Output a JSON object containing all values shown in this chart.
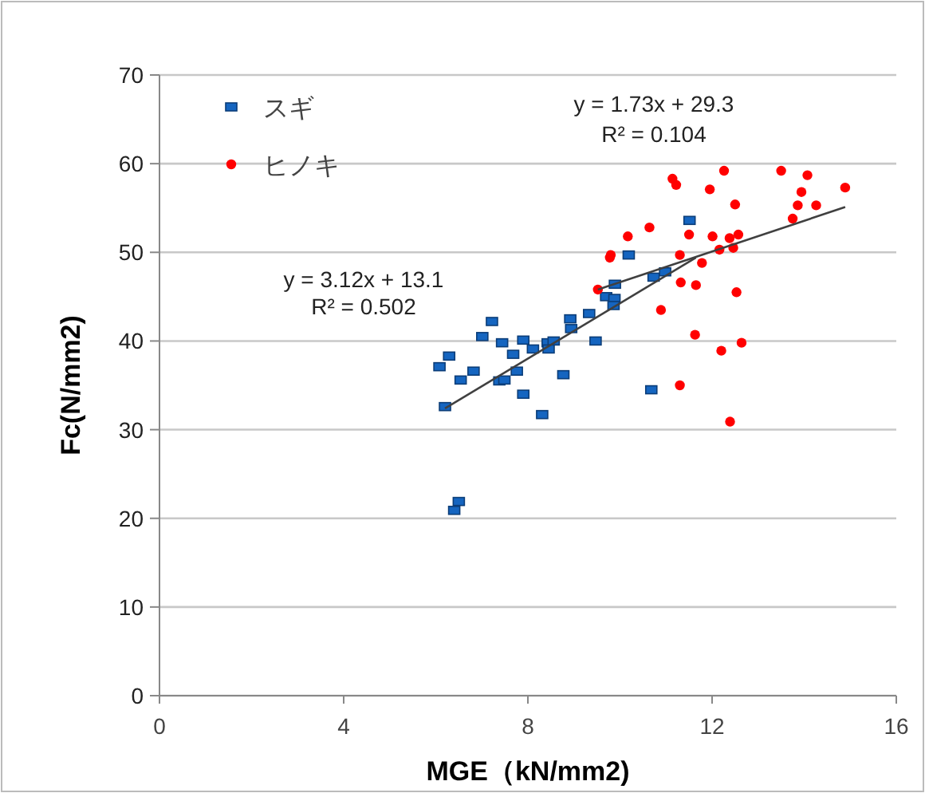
{
  "chart_data": {
    "type": "scatter",
    "xlabel": "MGE（kN/mm2)",
    "ylabel": "Fc(N/mm2)",
    "xlim": [
      0,
      16
    ],
    "xticks": [
      0,
      4,
      8,
      12,
      16
    ],
    "ylim": [
      0,
      70
    ],
    "yticks": [
      0,
      10,
      20,
      30,
      40,
      50,
      60,
      70
    ],
    "grid": "y",
    "legend": "top left",
    "series": [
      {
        "name": "スギ",
        "color": "#1565c0",
        "marker": "square",
        "x": [
          7.22,
          7.01,
          7.44,
          7.9,
          6.29,
          6.08,
          7.68,
          8.11,
          8.43,
          8.56,
          8.45,
          6.82,
          6.54,
          7.76,
          7.38,
          7.49,
          8.77,
          7.9,
          6.2,
          8.31,
          9.47,
          10.68,
          6.5,
          6.4,
          8.92,
          8.94,
          9.33,
          9.7,
          9.88,
          9.86,
          11.51,
          10.19,
          9.89,
          10.73,
          10.98
        ],
        "values": [
          42.2,
          40.5,
          39.8,
          40.1,
          38.3,
          37.1,
          38.5,
          39.1,
          39.8,
          40.0,
          39.1,
          36.6,
          35.6,
          36.6,
          35.5,
          35.6,
          36.2,
          34.0,
          32.6,
          31.7,
          40.0,
          34.5,
          21.9,
          20.9,
          42.5,
          41.4,
          43.1,
          45.0,
          44.8,
          44.0,
          53.6,
          49.7,
          46.4,
          47.2,
          47.8
        ]
      },
      {
        "name": "ヒノキ",
        "color": "#ff0000",
        "marker": "circle",
        "x": [
          11.14,
          11.22,
          12.26,
          13.5,
          14.07,
          11.95,
          13.94,
          14.89,
          12.5,
          13.86,
          14.26,
          13.75,
          10.64,
          10.17,
          11.5,
          12.01,
          12.38,
          12.57,
          9.8,
          9.78,
          11.3,
          12.16,
          12.46,
          11.78,
          11.32,
          11.65,
          9.52,
          12.53,
          10.89,
          11.63,
          12.64,
          12.2,
          11.3,
          12.39
        ],
        "values": [
          58.3,
          57.6,
          59.2,
          59.2,
          58.7,
          57.1,
          56.8,
          57.3,
          55.4,
          55.3,
          55.3,
          53.8,
          52.8,
          51.8,
          52.0,
          51.8,
          51.6,
          52.0,
          49.7,
          49.4,
          49.7,
          50.3,
          50.5,
          48.8,
          46.6,
          46.3,
          45.8,
          45.5,
          43.5,
          40.7,
          39.8,
          38.9,
          35.0,
          30.9
        ]
      },
      {
        "type": "line",
        "color": "#404040",
        "x": [
          6.2,
          11.65
        ],
        "values": [
          32.4,
          49.4
        ]
      },
      {
        "type": "line",
        "color": "#404040",
        "x": [
          9.52,
          14.89
        ],
        "values": [
          45.8,
          55.1
        ]
      }
    ],
    "annotations": [
      "y = 1.73x + 29.3",
      "R² = 0.104",
      "y = 3.12x + 13.1",
      "R² = 0.502"
    ]
  }
}
